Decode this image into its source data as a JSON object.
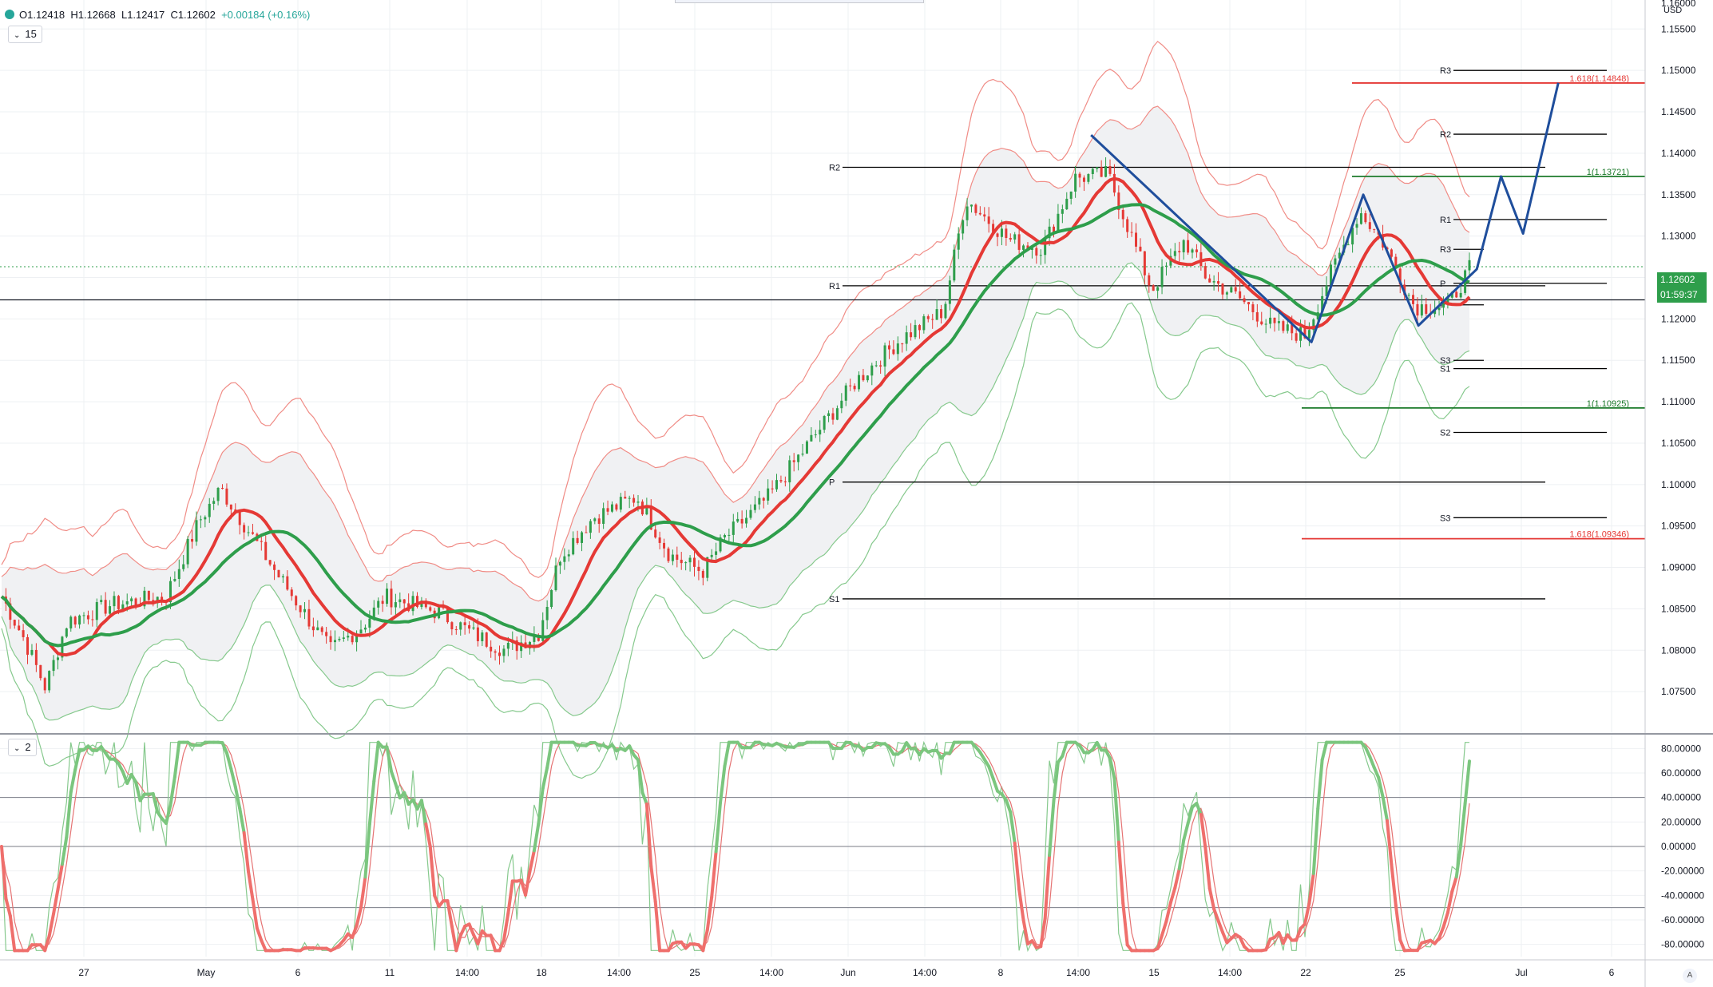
{
  "header": {
    "open": "O1.12418",
    "high": "H1.12668",
    "low": "L1.12417",
    "close": "C1.12602",
    "change": "+0.00184 (+0.16%)"
  },
  "panes": {
    "main_label": "15",
    "osc_label": "2"
  },
  "price_axis": {
    "currency": "USD",
    "top_partial": "1.16000",
    "last_price": "1.12602",
    "countdown": "01:59:37",
    "ticks": [
      1.155,
      1.15,
      1.145,
      1.14,
      1.135,
      1.13,
      1.125,
      1.12,
      1.115,
      1.11,
      1.105,
      1.1,
      1.095,
      1.09,
      1.085,
      1.08,
      1.075
    ]
  },
  "osc_axis": {
    "ticks": [
      "80.00000",
      "60.00000",
      "40.00000",
      "20.00000",
      "0.00000",
      "-20.00000",
      "-40.00000",
      "-60.00000",
      "-80.00000"
    ]
  },
  "time_axis": {
    "labels": [
      "27",
      "May",
      "6",
      "11",
      "14:00",
      "18",
      "14:00",
      "25",
      "14:00",
      "Jun",
      "14:00",
      "8",
      "14:00",
      "15",
      "14:00",
      "22",
      "25",
      "Jul",
      "6"
    ]
  },
  "scale_button": "A",
  "chart_data": {
    "type": "line",
    "symbol_pair_quote": "USD",
    "price_range": [
      1.07,
      1.16
    ],
    "oscillator_range": [
      -90,
      90
    ],
    "close_series_key_points": [
      {
        "t": 0,
        "v": 1.0865
      },
      {
        "t": 20,
        "v": 1.0815
      },
      {
        "t": 40,
        "v": 1.0755
      },
      {
        "t": 60,
        "v": 1.0835
      },
      {
        "t": 100,
        "v": 1.0855
      },
      {
        "t": 150,
        "v": 1.0865
      },
      {
        "t": 180,
        "v": 1.0955
      },
      {
        "t": 200,
        "v": 1.0995
      },
      {
        "t": 220,
        "v": 1.0955
      },
      {
        "t": 250,
        "v": 1.0895
      },
      {
        "t": 300,
        "v": 1.08
      },
      {
        "t": 330,
        "v": 1.083
      },
      {
        "t": 350,
        "v": 1.0865
      },
      {
        "t": 400,
        "v": 1.0845
      },
      {
        "t": 430,
        "v": 1.082
      },
      {
        "t": 460,
        "v": 1.08
      },
      {
        "t": 490,
        "v": 1.082
      },
      {
        "t": 510,
        "v": 1.0915
      },
      {
        "t": 540,
        "v": 1.096
      },
      {
        "t": 580,
        "v": 1.0985
      },
      {
        "t": 610,
        "v": 1.0915
      },
      {
        "t": 640,
        "v": 1.0895
      },
      {
        "t": 660,
        "v": 1.0935
      },
      {
        "t": 700,
        "v": 1.0985
      },
      {
        "t": 740,
        "v": 1.1055
      },
      {
        "t": 780,
        "v": 1.1125
      },
      {
        "t": 820,
        "v": 1.1175
      },
      {
        "t": 860,
        "v": 1.121
      },
      {
        "t": 880,
        "v": 1.1345
      },
      {
        "t": 920,
        "v": 1.1295
      },
      {
        "t": 950,
        "v": 1.1285
      },
      {
        "t": 980,
        "v": 1.137
      },
      {
        "t": 1010,
        "v": 1.1375
      },
      {
        "t": 1030,
        "v": 1.1305
      },
      {
        "t": 1050,
        "v": 1.1235
      },
      {
        "t": 1080,
        "v": 1.1295
      },
      {
        "t": 1100,
        "v": 1.125
      },
      {
        "t": 1130,
        "v": 1.1225
      },
      {
        "t": 1160,
        "v": 1.119
      },
      {
        "t": 1190,
        "v": 1.118
      },
      {
        "t": 1210,
        "v": 1.1245
      },
      {
        "t": 1240,
        "v": 1.133
      },
      {
        "t": 1260,
        "v": 1.1295
      },
      {
        "t": 1290,
        "v": 1.1215
      },
      {
        "t": 1320,
        "v": 1.1215
      },
      {
        "t": 1340,
        "v": 1.126
      }
    ],
    "pivot_levels_left": {
      "R2": 1.1383,
      "R1": 1.124,
      "P": 1.1003,
      "S1": 1.0862
    },
    "pivot_levels_right": {
      "R3": 1.15,
      "R2": 1.1423,
      "R1": 1.132,
      "P": 1.1243,
      "S1": 1.114,
      "S2": 1.1063,
      "S3": 1.096
    },
    "pivot_levels_week": {
      "R3": 1.1284,
      "P": 1.1217,
      "S3": 1.115
    },
    "fib_levels": [
      {
        "label": "1.618(1.14848)",
        "value": 1.14848,
        "color": "#e53935"
      },
      {
        "label": "1(1.13721)",
        "value": 1.13721,
        "color": "#1b7a2a"
      },
      {
        "label": "1(1.10925)",
        "value": 1.10925,
        "color": "#1b7a2a"
      },
      {
        "label": "1.618(1.09346)",
        "value": 1.09346,
        "color": "#e53935"
      }
    ],
    "horizontal_level": 1.1223,
    "projection_path": [
      {
        "x": 990,
        "y": 1.1422
      },
      {
        "x": 1190,
        "y": 1.1172
      },
      {
        "x": 1237,
        "y": 1.135
      },
      {
        "x": 1287,
        "y": 1.1192
      },
      {
        "x": 1340,
        "y": 1.126
      },
      {
        "x": 1362,
        "y": 1.1372
      },
      {
        "x": 1382,
        "y": 1.1303
      },
      {
        "x": 1414,
        "y": 1.1485
      }
    ],
    "colors": {
      "up": "#2e9e4b",
      "down": "#e53935",
      "ma_fast": "#e53935",
      "ma_slow": "#2e9e4b",
      "band_upper": "#f08c86",
      "band_lower": "#86c98d",
      "projection": "#1f4e9c"
    }
  }
}
